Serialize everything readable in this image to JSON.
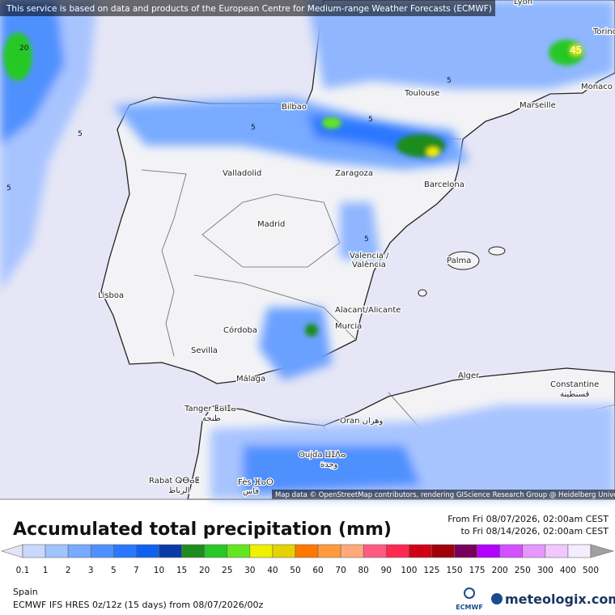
{
  "notice": "This service is based on data and products of the European Centre for Medium-range Weather Forecasts (ECMWF)",
  "attribution": "Map data © OpenStreetMap contributors, rendering GIScience Research Group @ Heidelberg University",
  "cities": [
    "Lyon",
    "Torino",
    "Monaco",
    "Marseille",
    "Toulouse",
    "Bilbao",
    "Valladolid",
    "Zaragoza",
    "Barcelona",
    "Madrid",
    "Valencia /",
    "València",
    "Palma",
    "Lisboa",
    "Alacant/Alicante",
    "Murcia",
    "Córdoba",
    "Sevilla",
    "Málaga",
    "Tanger ⵟⴰⵏⵊⴰ",
    "طنجة",
    "Alger",
    "Constantine",
    "قسنطينة",
    "Oran وهران",
    "Oujda ⵡⵊⴷⴰ",
    "وجدة",
    "Rabat ⵕⴱⴰⵟ",
    "الرباط",
    "Fès ⴼⴰⵙ",
    "فاس"
  ],
  "contours": [
    "20",
    "5",
    "5",
    "5",
    "5",
    "45",
    "5",
    "5"
  ],
  "title": "Accumulated total precipitation (mm)",
  "period_from": "From Fri 08/07/2026, 02:00am CEST",
  "period_to": "to Fri 08/14/2026, 02:00am CEST",
  "colorbar": {
    "labels": [
      "0.1",
      "1",
      "2",
      "3",
      "5",
      "7",
      "10",
      "15",
      "20",
      "25",
      "30",
      "40",
      "50",
      "60",
      "70",
      "80",
      "90",
      "100",
      "125",
      "150",
      "175",
      "200",
      "250",
      "300",
      "400",
      "500"
    ],
    "colors": [
      "#e4e4f6",
      "#c8d8ff",
      "#a0c4ff",
      "#78aaff",
      "#4f90ff",
      "#2a78ff",
      "#1060f0",
      "#0a3aa8",
      "#1e8c1e",
      "#28c828",
      "#64e61e",
      "#f0f000",
      "#e6d200",
      "#ff7800",
      "#ff9b3c",
      "#ffaa78",
      "#ff5a82",
      "#ff2850",
      "#d20014",
      "#a0000a",
      "#78005a",
      "#b400ff",
      "#d250ff",
      "#e696ff",
      "#f0c8ff",
      "#f5ecff",
      "#c8c8c8",
      "#a0a0a0"
    ]
  },
  "region": "Spain",
  "model": "ECMWF IFS HRES 0z/12z (15 days) from 08/07/2026/00z",
  "logo_ecmwf": "ECMWF",
  "logo_meteologix": "meteologix.com"
}
